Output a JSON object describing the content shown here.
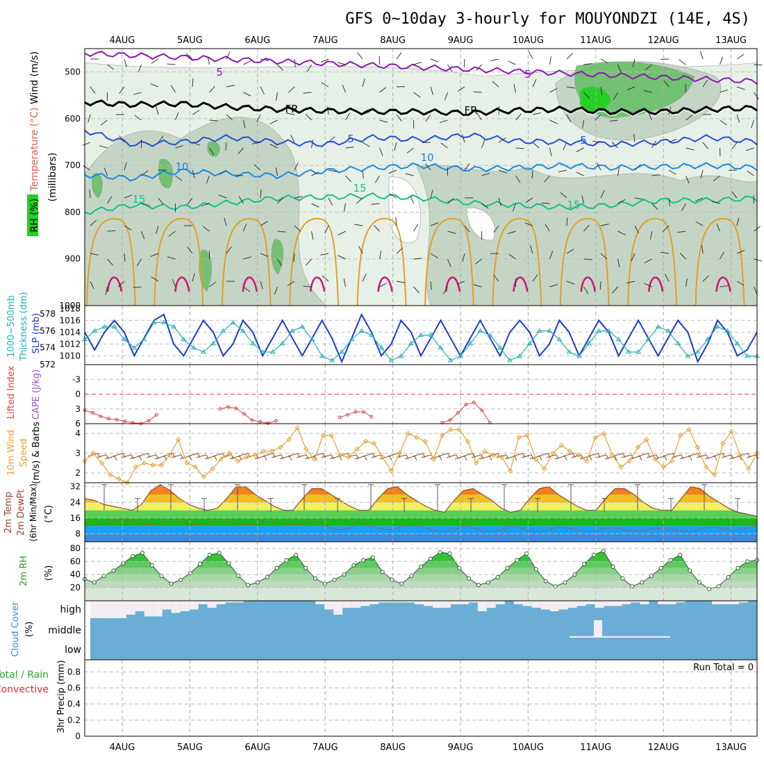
{
  "title": "GFS 0~10day 3-hourly for MOUYONDZI (14E, 4S)",
  "date_labels": [
    "4AUG",
    "5AUG",
    "6AUG",
    "7AUG",
    "8AUG",
    "9AUG",
    "10AUG",
    "11AUG",
    "12AUG",
    "13AUG"
  ],
  "colors": {
    "temp_purple": "#8a18b0",
    "temp_black": "#000000",
    "temp_blue": "#1f4fd0",
    "temp_lightblue": "#1a8ae0",
    "temp_teal": "#10c090",
    "temp_orange": "#e0a020",
    "temp_magenta": "#d0107a",
    "rh_light": "#e6f0e6",
    "rh_mid": "#c4d4c4",
    "rh_dark": "#6ec06e",
    "rh_bright": "#22d022",
    "slp": "#1a3acc",
    "thickness": "#20b0b8",
    "lifted": "#e04040",
    "wind": "#e8a030",
    "barb": "#7a4a20",
    "cloud": "#6aaed6",
    "rh2m": "#22c022"
  },
  "panels": {
    "upper": {
      "wind_label": "Wind (m/s)",
      "temp_label": "Temperature (°C)",
      "rh_label": "RH (%)",
      "unit_label": "(millibars)",
      "contour_labels": [
        "5",
        "5",
        "FR",
        "FR",
        "5",
        "5",
        "10",
        "10",
        "15",
        "15",
        "15"
      ]
    },
    "slp": {
      "thick_label": "1000~500mb",
      "thick_label2": "Thickness (dm)",
      "slp_label": "SLP (mb)"
    },
    "cape": {
      "lifted_label": "Lifted Index",
      "cape_label": "CAPE (J/kg)"
    },
    "wind10": {
      "label1": "10m Wind",
      "label2": "Speed",
      "label3": "(m/s) & Barbs"
    },
    "temp2m": {
      "label1": "2m Temp",
      "label2": "2m DewPt",
      "label3": "(6hr Min/Max)",
      "unit": "(°C)"
    },
    "rh2m": {
      "label1": "2m RH",
      "unit": "(%)"
    },
    "cloud": {
      "label1": "Cloud Cover",
      "unit": "(%)",
      "levels": [
        "high",
        "middle",
        "low"
      ]
    },
    "precip": {
      "label1": "Total / Rain",
      "label2": "Convective",
      "label3": "3hr Precip (mm)",
      "run_total": "Run Total = 0"
    }
  },
  "chart_data": [
    {
      "type": "heatmap",
      "name": "upper_air_cross_section",
      "y_ticks": [
        "500",
        "600",
        "700",
        "800",
        "900",
        "1000"
      ],
      "ylim": [
        450,
        1000
      ],
      "contours_celsius": [
        {
          "level": -5,
          "pressure_mb": [
            460,
            520
          ]
        },
        {
          "level": 0,
          "pressure_mb": [
            565,
            570,
            568,
            575,
            580,
            583,
            585,
            585,
            588,
            582,
            580,
            585,
            585,
            580,
            577
          ]
        },
        {
          "level": 5,
          "pressure_mb": [
            625,
            655,
            650,
            640,
            650,
            655,
            640,
            645,
            635,
            648,
            650,
            655,
            650,
            640,
            650
          ]
        },
        {
          "level": 10,
          "pressure_mb": [
            720,
            728,
            712,
            718,
            722,
            712,
            705,
            700,
            708,
            705,
            700,
            705,
            703,
            700,
            705
          ]
        },
        {
          "level": 15,
          "pressure_mb": [
            800,
            785,
            790,
            780,
            770,
            768,
            765,
            770,
            780,
            785,
            790,
            785,
            775,
            775,
            770
          ]
        }
      ]
    },
    {
      "type": "line",
      "name": "slp_thickness",
      "y_ticks_slp": [
        "1010",
        "1012",
        "1014",
        "1016",
        "1018"
      ],
      "y_ticks_thick": [
        "572",
        "574",
        "576",
        "578"
      ],
      "series": [
        {
          "name": "SLP",
          "values": [
            1014,
            1011,
            1014,
            1016,
            1014,
            1010,
            1013,
            1016,
            1017,
            1012,
            1010,
            1013,
            1016,
            1014,
            1010,
            1012,
            1016,
            1014,
            1010,
            1013,
            1016,
            1013,
            1010,
            1013,
            1016,
            1013,
            1009,
            1013,
            1017,
            1014,
            1010,
            1012,
            1016,
            1014,
            1010,
            1013,
            1016,
            1013,
            1010,
            1013,
            1016,
            1013,
            1010,
            1014,
            1016,
            1014,
            1010,
            1012,
            1016,
            1014,
            1010,
            1013,
            1016,
            1014,
            1010,
            1013,
            1016,
            1013,
            1010,
            1013,
            1016,
            1014,
            1009,
            1012,
            1016,
            1014,
            1010,
            1011,
            1014
          ]
        },
        {
          "name": "Thickness",
          "values": [
            575,
            576,
            576.5,
            576.5,
            575,
            574,
            575,
            577,
            577,
            576.5,
            575,
            574,
            573.5,
            574.5,
            576,
            577,
            576,
            574.5,
            573.5,
            573.5,
            574.5,
            576,
            576.5,
            575,
            573,
            572.5,
            573.5,
            575,
            576,
            575.5,
            574,
            572.5,
            573,
            574.5,
            575.5,
            575.5,
            574,
            572.5,
            573,
            574.5,
            576,
            575.5,
            574,
            572.5,
            573,
            574.5,
            576,
            576,
            575,
            573.5,
            573,
            574.5,
            576,
            576,
            575,
            573.5,
            573.5,
            575,
            576.5,
            576,
            574.5,
            573,
            573.5,
            575,
            576.5,
            576,
            574.5,
            573,
            573
          ]
        }
      ]
    },
    {
      "type": "line",
      "name": "lifted_index",
      "y_ticks": [
        "-3",
        "0",
        "3",
        "6"
      ],
      "ylim": [
        -6,
        6
      ],
      "series": [
        {
          "name": "Lifted Index",
          "values": [
            3.3,
            3.8,
            4.5,
            5,
            5.2,
            5.5,
            5.8,
            6,
            5.4,
            4.2,
            3,
            2.6,
            2.9,
            4,
            5.3,
            5.6,
            5.9,
            5.4,
            4.7,
            4.2,
            3.6,
            3.6,
            4.6,
            5.8,
            5.3,
            3.8,
            2.1,
            1.7,
            3.3,
            5.8
          ]
        }
      ]
    },
    {
      "type": "line",
      "name": "wind10m",
      "y_ticks": [
        "2",
        "3",
        "4"
      ],
      "ylim": [
        1.5,
        4.5
      ],
      "series": [
        {
          "name": "10m Wind Speed",
          "values": [
            2.6,
            3,
            2.5,
            1.9,
            1.7,
            1.5,
            2.3,
            2.5,
            2.4,
            2.4,
            2.9,
            3.7,
            2.5,
            2.3,
            1.8,
            2.2,
            2.7,
            3,
            2.6,
            2.8,
            2.9,
            3.1,
            3.1,
            3.3,
            3.7,
            4.3,
            3.2,
            2.7,
            3.9,
            3.9,
            2.9,
            2.8,
            3.2,
            3.6,
            3.5,
            2.8,
            2.1,
            3,
            4,
            3.8,
            3.6,
            2.7,
            3.9,
            4.2,
            4.2,
            3.6,
            2.5,
            3.1,
            2.9,
            2.8,
            2.1,
            3.8,
            3.9,
            2.7,
            2.2,
            3,
            3.4,
            3.1,
            2.9,
            2.6,
            3.8,
            4,
            2.9,
            2.3,
            2.6,
            3.3,
            3.7,
            2.7,
            2.3,
            2.6,
            3.9,
            4.2,
            3.3,
            2.3,
            1.9,
            3.5,
            4.1,
            2.9,
            2.2,
            3.0
          ]
        }
      ]
    },
    {
      "type": "area",
      "name": "temp2m",
      "y_ticks": [
        "8",
        "16",
        "24",
        "32"
      ],
      "ylim": [
        4,
        34
      ],
      "series": [
        {
          "name": "2m Temp",
          "values": [
            26,
            25,
            23,
            22,
            21,
            20,
            23,
            30,
            33,
            30,
            26,
            23,
            21,
            20,
            21,
            26,
            32,
            32,
            28,
            25,
            22,
            20,
            20,
            26,
            31,
            31,
            28,
            25,
            22,
            20,
            20,
            26,
            31,
            32,
            28,
            25,
            22,
            20,
            19,
            25,
            30,
            31,
            28,
            25,
            21,
            19,
            20,
            26,
            31,
            32,
            28,
            25,
            22,
            20,
            20,
            26,
            31,
            31,
            28,
            24,
            21,
            20,
            20,
            26,
            32,
            31,
            27,
            24,
            21,
            19,
            18,
            17
          ]
        },
        {
          "name": "2m DewPt",
          "values": [
            12,
            12.5,
            13,
            14,
            15.5,
            14.5,
            13,
            12.5,
            13.5,
            14.5,
            14,
            13,
            12.5,
            13.5,
            14.5,
            14,
            13,
            12.5,
            13,
            14.5,
            14,
            13,
            12.5,
            13,
            14.5,
            13,
            11,
            10,
            11,
            13.5,
            12.5,
            11,
            10,
            11,
            12.5,
            12,
            11,
            9.5,
            9,
            10,
            12,
            11,
            9.5,
            9,
            10,
            12,
            11,
            9.5,
            9,
            10,
            11.5,
            11,
            10,
            9,
            9.5,
            11,
            11,
            10,
            9.5,
            9.5,
            10.5,
            11,
            10,
            9.5,
            9,
            10.5,
            11.5,
            11,
            10,
            10,
            11,
            12
          ]
        }
      ]
    },
    {
      "type": "area",
      "name": "rh2m",
      "y_ticks": [
        "20",
        "40",
        "60",
        "80"
      ],
      "ylim": [
        0,
        90
      ],
      "series": [
        {
          "name": "2m RH",
          "values": [
            33,
            28,
            38,
            46,
            57,
            68,
            73,
            54,
            38,
            26,
            32,
            42,
            56,
            70,
            73,
            57,
            38,
            24,
            28,
            36,
            50,
            62,
            70,
            50,
            34,
            26,
            32,
            40,
            54,
            62,
            66,
            44,
            32,
            26,
            38,
            52,
            64,
            74,
            72,
            50,
            34,
            24,
            28,
            36,
            50,
            62,
            72,
            48,
            30,
            22,
            28,
            40,
            56,
            70,
            76,
            52,
            34,
            22,
            28,
            38,
            50,
            62,
            70,
            46,
            28,
            18,
            22,
            36,
            50,
            60,
            62
          ]
        }
      ]
    },
    {
      "type": "bar",
      "name": "cloud_cover_high",
      "values": [
        1,
        1,
        1,
        1,
        0.8,
        0.6,
        0.9,
        0.9,
        0.5,
        0.7,
        0.6,
        0.5,
        0.2,
        0.4,
        0.2,
        0.1,
        0.1,
        0,
        0,
        0,
        0,
        0,
        0,
        0,
        0,
        0.2,
        0.5,
        0.8,
        0.4,
        0.4,
        0.3,
        0.2,
        0.1,
        0.1,
        0.1,
        0.1,
        0.2,
        0.3,
        0.4,
        0.4,
        0.2,
        0.2,
        0.1,
        0.6,
        0.4,
        0.2,
        0,
        0.2,
        0.3,
        0.4,
        0.5,
        0.6,
        0.5,
        0.4,
        0.3,
        0.2,
        0.4,
        0.3,
        0.3,
        0.2,
        0.1,
        0.2,
        0,
        0.2,
        0.2,
        0.1,
        0,
        0,
        0,
        0.2,
        0.2,
        0.2,
        0.1,
        0
      ]
    },
    {
      "type": "bar",
      "name": "precip_3hr",
      "y_ticks": [
        "0",
        "0.2",
        "0.4",
        "0.6",
        "0.8"
      ],
      "ylim": [
        0,
        0.95
      ],
      "values": []
    }
  ]
}
